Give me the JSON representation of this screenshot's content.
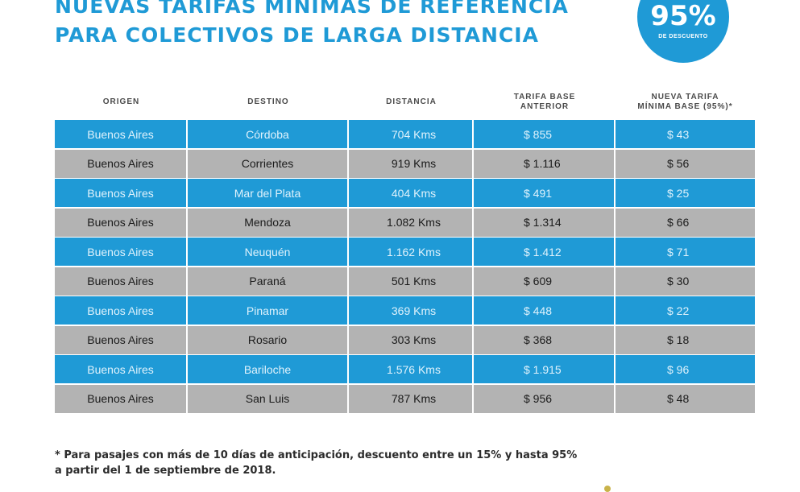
{
  "title": {
    "line1": "NUEVAS TARIFAS MÍNIMAS DE REFERENCIA",
    "line2": "PARA COLECTIVOS DE LARGA DISTANCIA"
  },
  "badge": {
    "percent": "95%",
    "label": "DE DESCUENTO"
  },
  "table": {
    "headers": {
      "origen": "ORIGEN",
      "destino": "DESTINO",
      "distancia": "DISTANCIA",
      "tarifa_anterior_1": "TARIFA BASE",
      "tarifa_anterior_2": "ANTERIOR",
      "nueva_tarifa_1": "NUEVA TARIFA",
      "nueva_tarifa_2": "MÍNIMA BASE (95%)*"
    },
    "rows": [
      {
        "origen": "Buenos Aires",
        "destino": "Córdoba",
        "distancia": "704 Kms",
        "anterior": "$ 855",
        "nueva": "$ 43"
      },
      {
        "origen": "Buenos Aires",
        "destino": "Corrientes",
        "distancia": "919 Kms",
        "anterior": "$ 1.116",
        "nueva": "$ 56"
      },
      {
        "origen": "Buenos Aires",
        "destino": "Mar del Plata",
        "distancia": "404 Kms",
        "anterior": "$ 491",
        "nueva": "$ 25"
      },
      {
        "origen": "Buenos Aires",
        "destino": "Mendoza",
        "distancia": "1.082 Kms",
        "anterior": "$ 1.314",
        "nueva": "$ 66"
      },
      {
        "origen": "Buenos Aires",
        "destino": "Neuquén",
        "distancia": "1.162 Kms",
        "anterior": "$ 1.412",
        "nueva": "$ 71"
      },
      {
        "origen": "Buenos Aires",
        "destino": "Paraná",
        "distancia": "501 Kms",
        "anterior": "$ 609",
        "nueva": "$ 30"
      },
      {
        "origen": "Buenos Aires",
        "destino": "Pinamar",
        "distancia": "369 Kms",
        "anterior": "$ 448",
        "nueva": "$ 22"
      },
      {
        "origen": "Buenos Aires",
        "destino": "Rosario",
        "distancia": "303 Kms",
        "anterior": "$ 368",
        "nueva": "$ 18"
      },
      {
        "origen": "Buenos Aires",
        "destino": "Bariloche",
        "distancia": "1.576 Kms",
        "anterior": "$ 1.915",
        "nueva": "$ 96"
      },
      {
        "origen": "Buenos Aires",
        "destino": "San Luis",
        "distancia": "787 Kms",
        "anterior": "$ 956",
        "nueva": "$ 48"
      }
    ]
  },
  "footnote": {
    "line1": "* Para pasajes con más de 10 días de anticipación, descuento entre un 15% y hasta 95%",
    "line2": "a partir del 1 de septiembre de 2018."
  },
  "colors": {
    "accent_blue": "#1f9ad6",
    "row_gray": "#b3b3b3"
  }
}
